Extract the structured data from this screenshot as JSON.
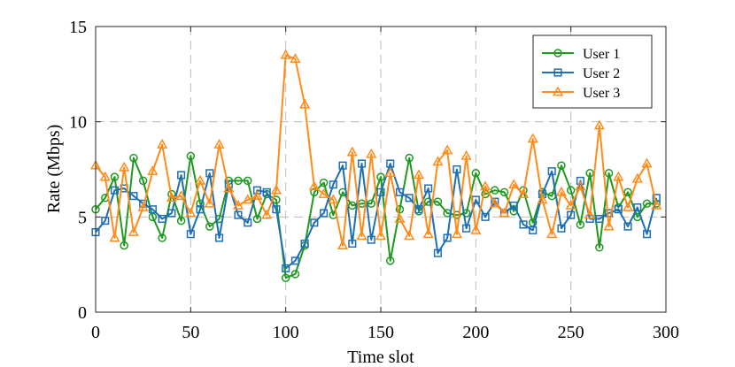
{
  "chart_data": {
    "type": "line",
    "title": "",
    "xlabel": "Time slot",
    "ylabel": "Rate (Mbps)",
    "xlim": [
      0,
      300
    ],
    "ylim": [
      0,
      15
    ],
    "xticks": [
      0,
      50,
      100,
      150,
      200,
      250,
      300
    ],
    "yticks": [
      0,
      5,
      10,
      15
    ],
    "grid": true,
    "legend_position": "top-right",
    "x": [
      0,
      5,
      10,
      15,
      20,
      25,
      30,
      35,
      40,
      45,
      50,
      55,
      60,
      65,
      70,
      75,
      80,
      85,
      90,
      95,
      100,
      105,
      110,
      115,
      120,
      125,
      130,
      135,
      140,
      145,
      150,
      155,
      160,
      165,
      170,
      175,
      180,
      185,
      190,
      195,
      200,
      205,
      210,
      215,
      220,
      225,
      230,
      235,
      240,
      245,
      250,
      255,
      260,
      265,
      270,
      275,
      280,
      285,
      290,
      295
    ],
    "series": [
      {
        "name": "User 1",
        "color": "#1f9a1f",
        "marker": "circle",
        "values": [
          5.4,
          6.0,
          7.1,
          3.5,
          8.1,
          6.9,
          5.0,
          3.9,
          6.2,
          4.8,
          8.2,
          5.7,
          4.5,
          4.9,
          6.9,
          6.9,
          6.9,
          4.9,
          6.2,
          5.9,
          1.8,
          2.0,
          3.5,
          6.3,
          6.8,
          5.1,
          6.3,
          5.6,
          5.7,
          5.7,
          7.1,
          2.7,
          5.4,
          8.1,
          5.3,
          5.8,
          5.8,
          5.2,
          5.1,
          5.2,
          7.3,
          6.2,
          6.4,
          6.3,
          5.3,
          6.4,
          4.7,
          6.3,
          6.1,
          7.7,
          6.4,
          4.6,
          7.3,
          3.4,
          7.3,
          5.5,
          6.3,
          5.0,
          5.7,
          5.7
        ]
      },
      {
        "name": "User 2",
        "color": "#1f6fb5",
        "marker": "square",
        "values": [
          4.2,
          4.8,
          6.4,
          6.5,
          6.1,
          5.7,
          5.4,
          4.9,
          5.2,
          7.2,
          4.1,
          5.4,
          7.3,
          3.9,
          6.7,
          5.1,
          4.7,
          6.4,
          6.3,
          5.4,
          2.3,
          2.7,
          3.6,
          4.7,
          5.2,
          6.7,
          7.7,
          3.6,
          7.8,
          3.8,
          6.3,
          7.8,
          6.3,
          6.0,
          5.4,
          6.5,
          3.1,
          3.9,
          7.5,
          4.4,
          5.9,
          5.0,
          5.8,
          5.2,
          5.6,
          4.6,
          4.3,
          6.2,
          7.4,
          4.4,
          5.1,
          6.9,
          4.9,
          4.9,
          5.2,
          5.4,
          4.5,
          5.5,
          4.1,
          6.0
        ]
      },
      {
        "name": "User 3",
        "color": "#ff8c1a",
        "marker": "triangle",
        "values": [
          7.7,
          7.1,
          3.9,
          7.6,
          4.2,
          5.5,
          7.4,
          8.8,
          6.0,
          6.1,
          5.2,
          6.9,
          5.7,
          8.8,
          6.5,
          5.6,
          5.9,
          6.1,
          5.1,
          6.4,
          13.5,
          13.3,
          10.9,
          6.6,
          6.2,
          5.9,
          3.5,
          8.4,
          4.0,
          8.3,
          4.0,
          7.3,
          4.9,
          4.0,
          7.2,
          4.1,
          7.9,
          8.5,
          4.1,
          8.2,
          4.3,
          6.6,
          5.7,
          5.2,
          6.7,
          6.2,
          9.1,
          5.9,
          4.1,
          6.3,
          5.6,
          6.6,
          5.1,
          9.8,
          4.5,
          7.1,
          5.5,
          7.0,
          7.8,
          5.6
        ]
      }
    ]
  }
}
